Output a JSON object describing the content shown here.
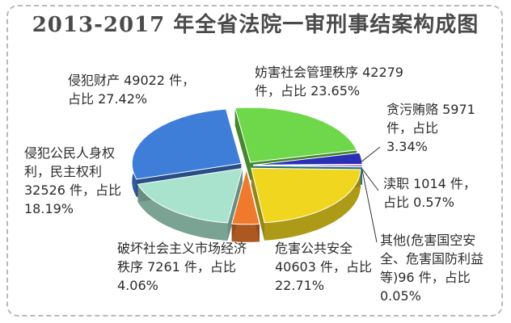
{
  "chart_data": {
    "type": "pie",
    "title": "2013-2017 年全省法院一审刑事结案构成图",
    "slices": [
      {
        "name": "妨害社会管理秩序",
        "value": 42279,
        "percent": 23.65,
        "color": "#6fd84a",
        "label": "妨害社会管理秩序 42279 件，占比 23.65%"
      },
      {
        "name": "贪污贿赂",
        "value": 5971,
        "percent": 3.34,
        "color": "#2b2fb5",
        "label": "贪污贿赂 5971 件，占比 3.34%"
      },
      {
        "name": "渎职",
        "value": 1014,
        "percent": 0.57,
        "color": "#8a2cc4",
        "label": "渎职 1014 件，占比 0.57%"
      },
      {
        "name": "其他(危害国空安全、危害国防利益等)",
        "value": 96,
        "percent": 0.05,
        "color": "#2fb8c8",
        "label": "其他(危害国空安全、危害国防利益等)96 件，占比 0.05%"
      },
      {
        "name": "危害公共安全",
        "value": 40603,
        "percent": 22.71,
        "color": "#f0d61e",
        "label": "危害公共安全 40603 件，占比 22.71%"
      },
      {
        "name": "破坏社会主义市场经济秩序",
        "value": 7261,
        "percent": 4.06,
        "color": "#ef7a2e",
        "label": "破坏社会主义市场经济秩序 7261 件，占比 4.06%"
      },
      {
        "name": "侵犯公民人身权利，民主权利",
        "value": 32526,
        "percent": 18.19,
        "color": "#a9e3ce",
        "label": "侵犯公民人身权利，民主权利 32526 件，占比 18.19%"
      },
      {
        "name": "侵犯财产",
        "value": 49022,
        "percent": 27.42,
        "color": "#3f7ed8",
        "label": "侵犯财产 49022 件，占比 27.42%"
      }
    ]
  }
}
